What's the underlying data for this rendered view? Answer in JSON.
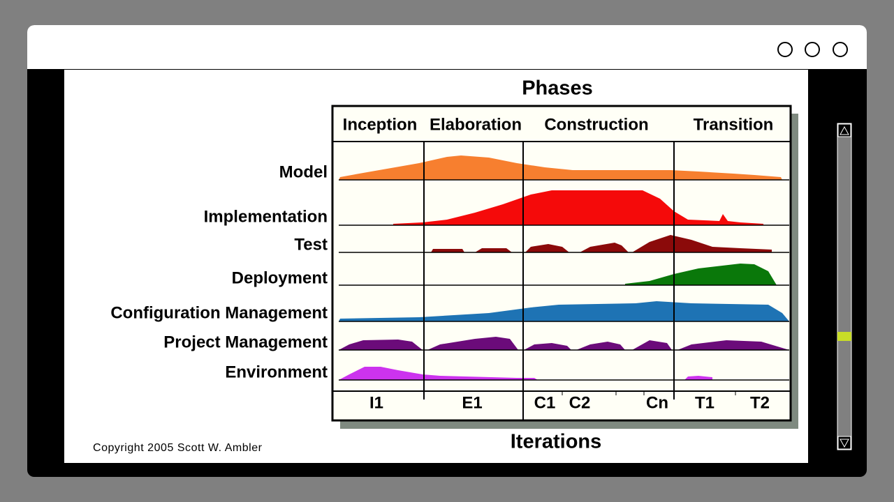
{
  "diagram": {
    "title": "Phases",
    "phases": [
      "Inception",
      "Elaboration",
      "Construction",
      "Transition"
    ],
    "disciplines": [
      "Model",
      "Implementation",
      "Test",
      "Deployment",
      "Configuration Management",
      "Project Management",
      "Environment"
    ],
    "iterations": [
      "I1",
      "E1",
      "C1",
      "C2",
      "Cn",
      "T1",
      "T2"
    ],
    "axis_label": "Iterations",
    "copyright": "Copyright 2005 Scott W. Ambler"
  }
}
